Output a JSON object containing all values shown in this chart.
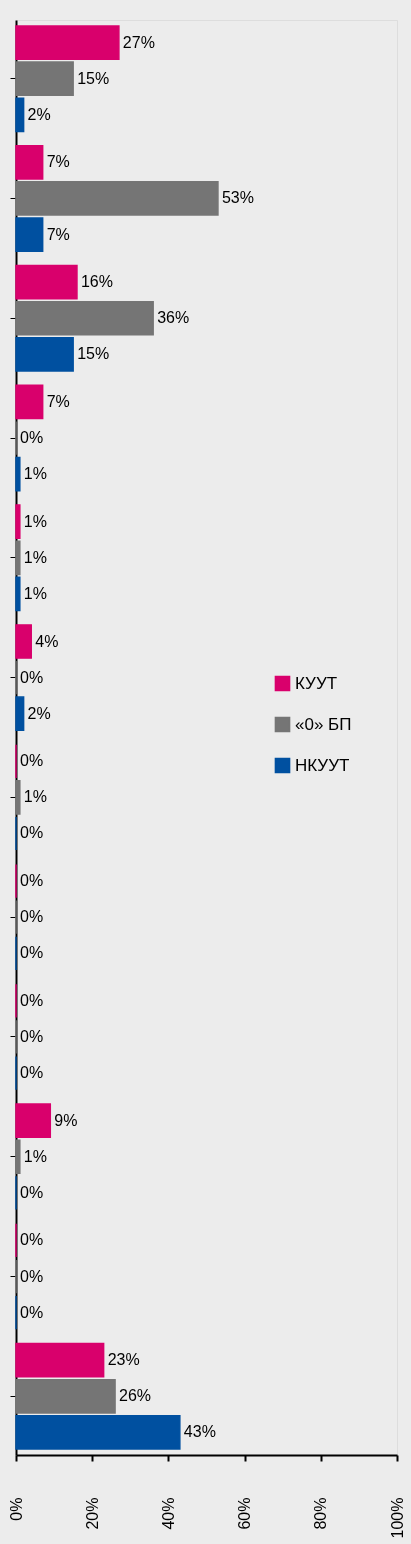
{
  "chart_data": {
    "type": "bar",
    "orientation": "horizontal",
    "legend": "right",
    "tick_labels": "x",
    "grid": false,
    "categories": [
      null,
      null,
      null,
      null,
      null,
      null,
      null,
      null,
      null,
      null,
      null,
      null
    ],
    "xlim": [
      0,
      100
    ],
    "xticks": [
      {
        "value": 0,
        "label": "0%"
      },
      {
        "value": 20,
        "label": "20%"
      },
      {
        "value": 40,
        "label": "40%"
      },
      {
        "value": 60,
        "label": "60%"
      },
      {
        "value": 80,
        "label": "80%"
      },
      {
        "value": 100,
        "label": "100%"
      }
    ],
    "series": [
      {
        "name": "КУУТ",
        "color": "#d9006c",
        "values": [
          27,
          7,
          16,
          7,
          1,
          4,
          0,
          0,
          0,
          9,
          0,
          23
        ],
        "value_labels": [
          "27%",
          "7%",
          "16%",
          "7%",
          "1%",
          "4%",
          "0%",
          "0%",
          "0%",
          "9%",
          "0%",
          "23%"
        ]
      },
      {
        "name": "«0» БП",
        "color": "#757575",
        "values": [
          15,
          53,
          36,
          0,
          1,
          0,
          1,
          0,
          0,
          1,
          0,
          26
        ],
        "value_labels": [
          "15%",
          "53%",
          "36%",
          "0%",
          "1%",
          "0%",
          "1%",
          "0%",
          "0%",
          "1%",
          "0%",
          "26%"
        ]
      },
      {
        "name": "НКУУТ",
        "color": "#0050a0",
        "values": [
          2,
          7,
          15,
          1,
          1,
          2,
          0,
          0,
          0,
          0,
          0,
          43
        ],
        "value_labels": [
          "2%",
          "7%",
          "15%",
          "1%",
          "1%",
          "2%",
          "0%",
          "0%",
          "0%",
          "0%",
          "0%",
          "43%"
        ]
      }
    ]
  }
}
